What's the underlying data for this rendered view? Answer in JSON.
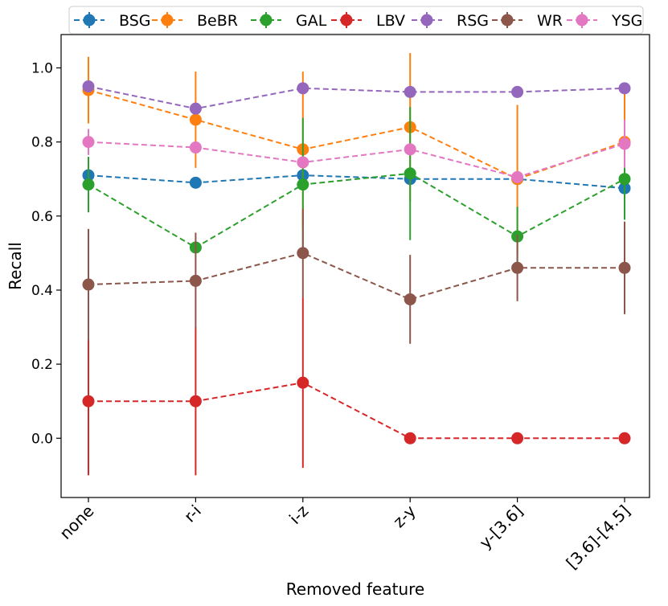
{
  "chart_data": {
    "type": "line",
    "title": "",
    "xlabel": "Removed feature",
    "ylabel": "Recall",
    "categories": [
      "none",
      "r-i",
      "i-z",
      "z-y",
      "y-[3.6]",
      "[3.6]-[4.5]"
    ],
    "ylim": [
      -0.16,
      1.09
    ],
    "yticks": [
      0.0,
      0.2,
      0.4,
      0.6,
      0.8,
      1.0
    ],
    "ytick_labels": [
      "0.0",
      "0.2",
      "0.4",
      "0.6",
      "0.8",
      "1.0"
    ],
    "legend_position": "top",
    "series": [
      {
        "name": "BSG",
        "color": "#1f77b4",
        "values": [
          0.71,
          0.69,
          0.71,
          0.7,
          0.7,
          0.675
        ],
        "errors": [
          0.0,
          0.0,
          0.0,
          0.0,
          0.0,
          0.0
        ]
      },
      {
        "name": "BeBR",
        "color": "#ff7f0e",
        "values": [
          0.94,
          0.86,
          0.78,
          0.84,
          0.7,
          0.8
        ],
        "errors": [
          0.09,
          0.13,
          0.21,
          0.2,
          0.2,
          0.16
        ]
      },
      {
        "name": "GAL",
        "color": "#2ca02c",
        "values": [
          0.685,
          0.515,
          0.685,
          0.715,
          0.545,
          0.7
        ],
        "errors": [
          0.075,
          0.0,
          0.18,
          0.18,
          0.08,
          0.11
        ]
      },
      {
        "name": "LBV",
        "color": "#d62728",
        "values": [
          0.1,
          0.1,
          0.15,
          0.0,
          0.0,
          0.0
        ],
        "errors": [
          0.2,
          0.2,
          0.23,
          0.0,
          0.0,
          0.0
        ]
      },
      {
        "name": "RSG",
        "color": "#9467bd",
        "values": [
          0.95,
          0.89,
          0.945,
          0.935,
          0.935,
          0.945
        ],
        "errors": [
          0.0,
          0.0,
          0.0,
          0.0,
          0.0,
          0.0
        ]
      },
      {
        "name": "WR",
        "color": "#8c564b",
        "values": [
          0.415,
          0.425,
          0.5,
          0.375,
          0.46,
          0.46
        ],
        "errors": [
          0.15,
          0.13,
          0.12,
          0.12,
          0.09,
          0.125
        ]
      },
      {
        "name": "YSG",
        "color": "#e377c2",
        "values": [
          0.8,
          0.785,
          0.745,
          0.78,
          0.705,
          0.795
        ],
        "errors": [
          0.035,
          0.0,
          0.0,
          0.0,
          0.0,
          0.065
        ]
      }
    ]
  }
}
